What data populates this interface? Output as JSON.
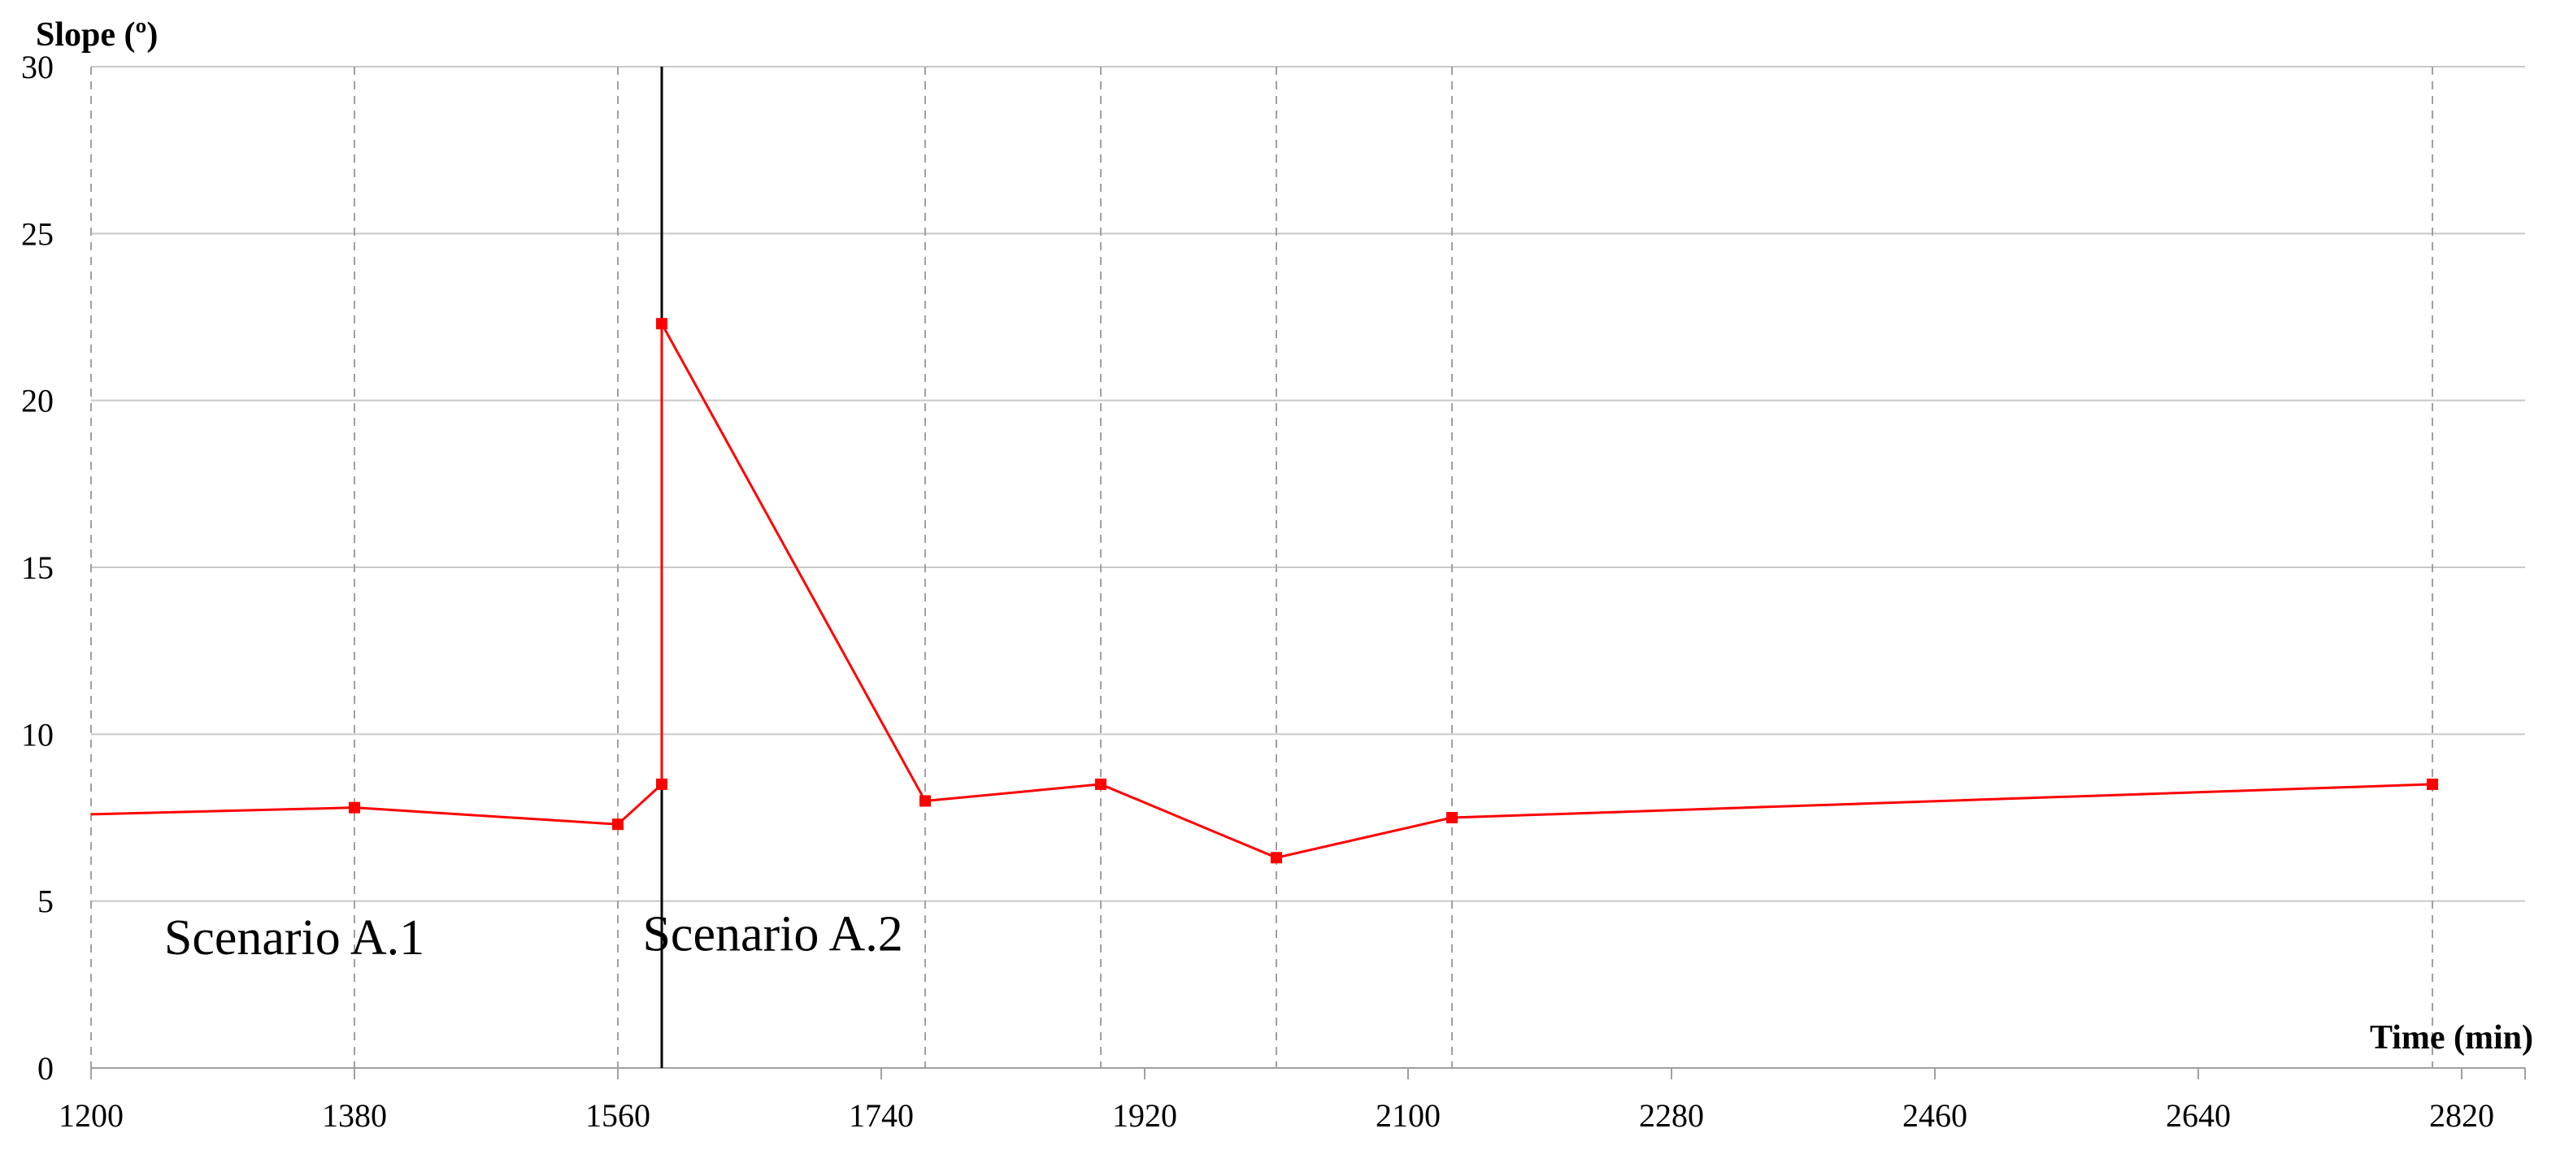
{
  "chart_data": {
    "type": "line",
    "ylabel": "Slope (º)",
    "xlabel": "Time (min)",
    "xlim": [
      1200,
      2870
    ],
    "ylim": [
      0,
      30
    ],
    "x_ticks": [
      1200,
      1380,
      1560,
      1740,
      1920,
      2100,
      2280,
      2460,
      2640,
      2820
    ],
    "y_ticks": [
      0,
      5,
      10,
      15,
      20,
      25,
      30
    ],
    "grid": "horizontal solid lines; vertical dashed lines at data points",
    "series_color": "#ff0000",
    "separator_color": "#000000",
    "grid_color": "#c8c8c8",
    "series": [
      {
        "x": [
          1200,
          1380,
          1560,
          1590,
          1590,
          1770,
          1890,
          2010,
          2130,
          2800
        ],
        "y": [
          7.6,
          7.8,
          7.3,
          8.5,
          22.3,
          8.0,
          8.5,
          6.3,
          7.5,
          8.5
        ]
      }
    ],
    "separator_x": 1590,
    "annotations": [
      {
        "text": "Scenario A.1",
        "x": 1250,
        "y": 3.9
      },
      {
        "text": "Scenario A.2",
        "x": 1577,
        "y": 4.0
      }
    ]
  }
}
